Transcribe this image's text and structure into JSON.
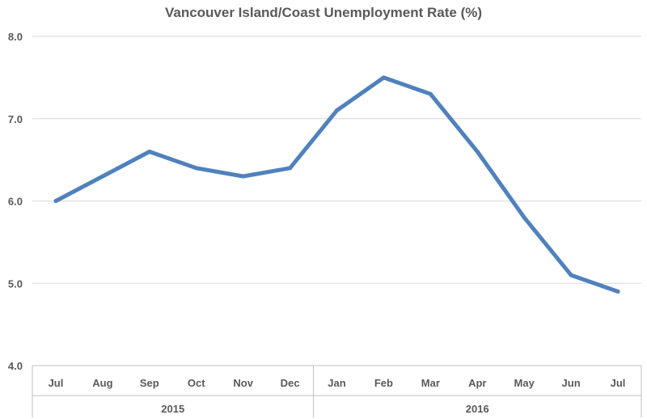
{
  "chart_data": {
    "type": "line",
    "title": "Vancouver Island/Coast Unemployment Rate (%)",
    "categories": [
      "Jul",
      "Aug",
      "Sep",
      "Oct",
      "Nov",
      "Dec",
      "Jan",
      "Feb",
      "Mar",
      "Apr",
      "May",
      "Jun",
      "Jul"
    ],
    "groups": [
      {
        "label": "2015",
        "count": 6
      },
      {
        "label": "2016",
        "count": 7
      }
    ],
    "series": [
      {
        "values": [
          6.0,
          6.3,
          6.6,
          6.4,
          6.3,
          6.4,
          7.1,
          7.5,
          7.3,
          6.6,
          5.8,
          5.1,
          4.9
        ],
        "color": "#4f81bd"
      }
    ],
    "ylim": [
      4.0,
      8.0
    ],
    "yticks": [
      "4.0",
      "5.0",
      "6.0",
      "7.0",
      "8.0"
    ],
    "grid": true,
    "legend": "none"
  }
}
